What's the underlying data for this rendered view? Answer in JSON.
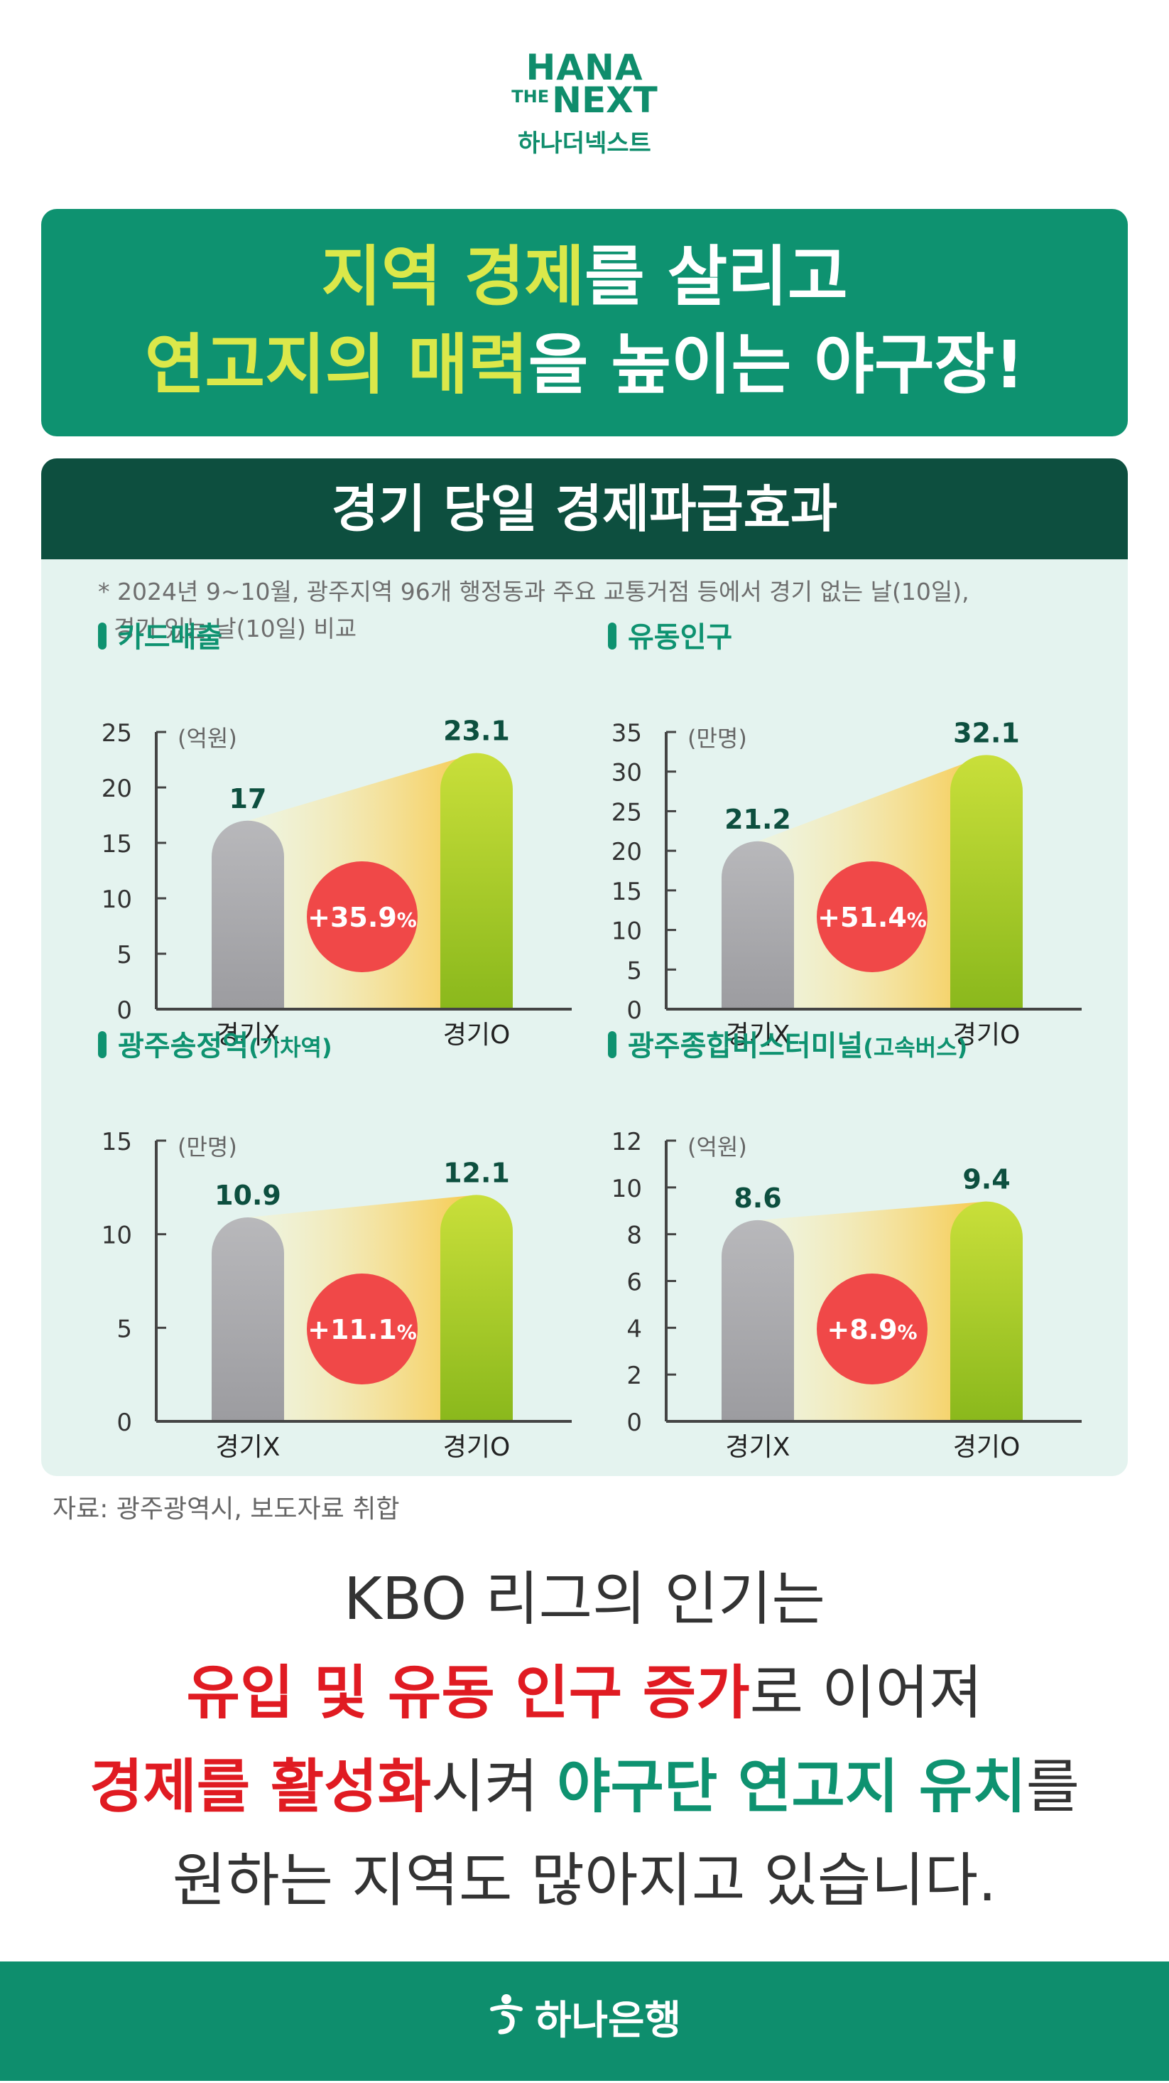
{
  "logo": {
    "line1": "HANA",
    "line2_small": "THE",
    "line2_big": "NEXT",
    "korean": "하나더넥스트"
  },
  "headline": {
    "line1_highlight": "지역 경제",
    "line1_rest": "를 살리고",
    "line2_highlight": "연고지의 매력",
    "line2_rest": "을 높이는 야구장!"
  },
  "section": {
    "title": "경기 당일 경제파급효과",
    "note_line1": "* 2024년 9~10월, 광주지역 96개 행정동과 주요 교통거점 등에서 경기 없는 날(10일),",
    "note_line2": "경기 있는 날(10일) 비교"
  },
  "colors": {
    "brand_green": "#0e9270",
    "dark_green": "#0d4f3f",
    "highlight_yellow": "#dbe84a",
    "badge_red": "#f04848",
    "bar_gray": "#a9a9ac",
    "bar_green": "#9ccc2a",
    "text_red": "#e01b22"
  },
  "chart_data": [
    {
      "type": "bar",
      "title": "카드매출",
      "unit": "(억원)",
      "categories": [
        "경기X",
        "경기O"
      ],
      "values": [
        17,
        23.1
      ],
      "value_labels": [
        "17",
        "23.1"
      ],
      "change": "+35.9",
      "change_unit": "%",
      "ylim": [
        0,
        25
      ],
      "yticks": [
        "0",
        "5",
        "10",
        "15",
        "20",
        "25"
      ]
    },
    {
      "type": "bar",
      "title": "유동인구",
      "unit": "(만명)",
      "categories": [
        "경기X",
        "경기O"
      ],
      "values": [
        21.2,
        32.1
      ],
      "value_labels": [
        "21.2",
        "32.1"
      ],
      "change": "+51.4",
      "change_unit": "%",
      "ylim": [
        0,
        35
      ],
      "yticks": [
        "0",
        "5",
        "10",
        "15",
        "20",
        "25",
        "30",
        "35"
      ]
    },
    {
      "type": "bar",
      "title": "광주송정역",
      "title_sub": "(기차역)",
      "unit": "(만명)",
      "categories": [
        "경기X",
        "경기O"
      ],
      "values": [
        10.9,
        12.1
      ],
      "value_labels": [
        "10.9",
        "12.1"
      ],
      "change": "+11.1",
      "change_unit": "%",
      "ylim": [
        0,
        15
      ],
      "yticks": [
        "0",
        "5",
        "10",
        "15"
      ]
    },
    {
      "type": "bar",
      "title": "광주종합버스터미널",
      "title_sub": "(고속버스)",
      "unit": "(억원)",
      "categories": [
        "경기X",
        "경기O"
      ],
      "values": [
        8.6,
        9.4
      ],
      "value_labels": [
        "8.6",
        "9.4"
      ],
      "change": "+8.9",
      "change_unit": "%",
      "ylim": [
        0,
        12
      ],
      "yticks": [
        "0",
        "2",
        "4",
        "6",
        "8",
        "10",
        "12"
      ]
    }
  ],
  "source": "자료: 광주광역시, 보도자료 취합",
  "message": {
    "line1": "KBO 리그의 인기는",
    "line2_red": "유입 및 유동 인구 증가",
    "line2_rest": "로 이어져",
    "line3_red": "경제를 활성화",
    "line3_mid": "시켜 ",
    "line3_green": "야구단 연고지 유치",
    "line3_rest": "를",
    "line4": "원하는 지역도 많아지고 있습니다."
  },
  "footer": {
    "icon": "hana-bank-logo-icon",
    "label": "하나은행"
  }
}
